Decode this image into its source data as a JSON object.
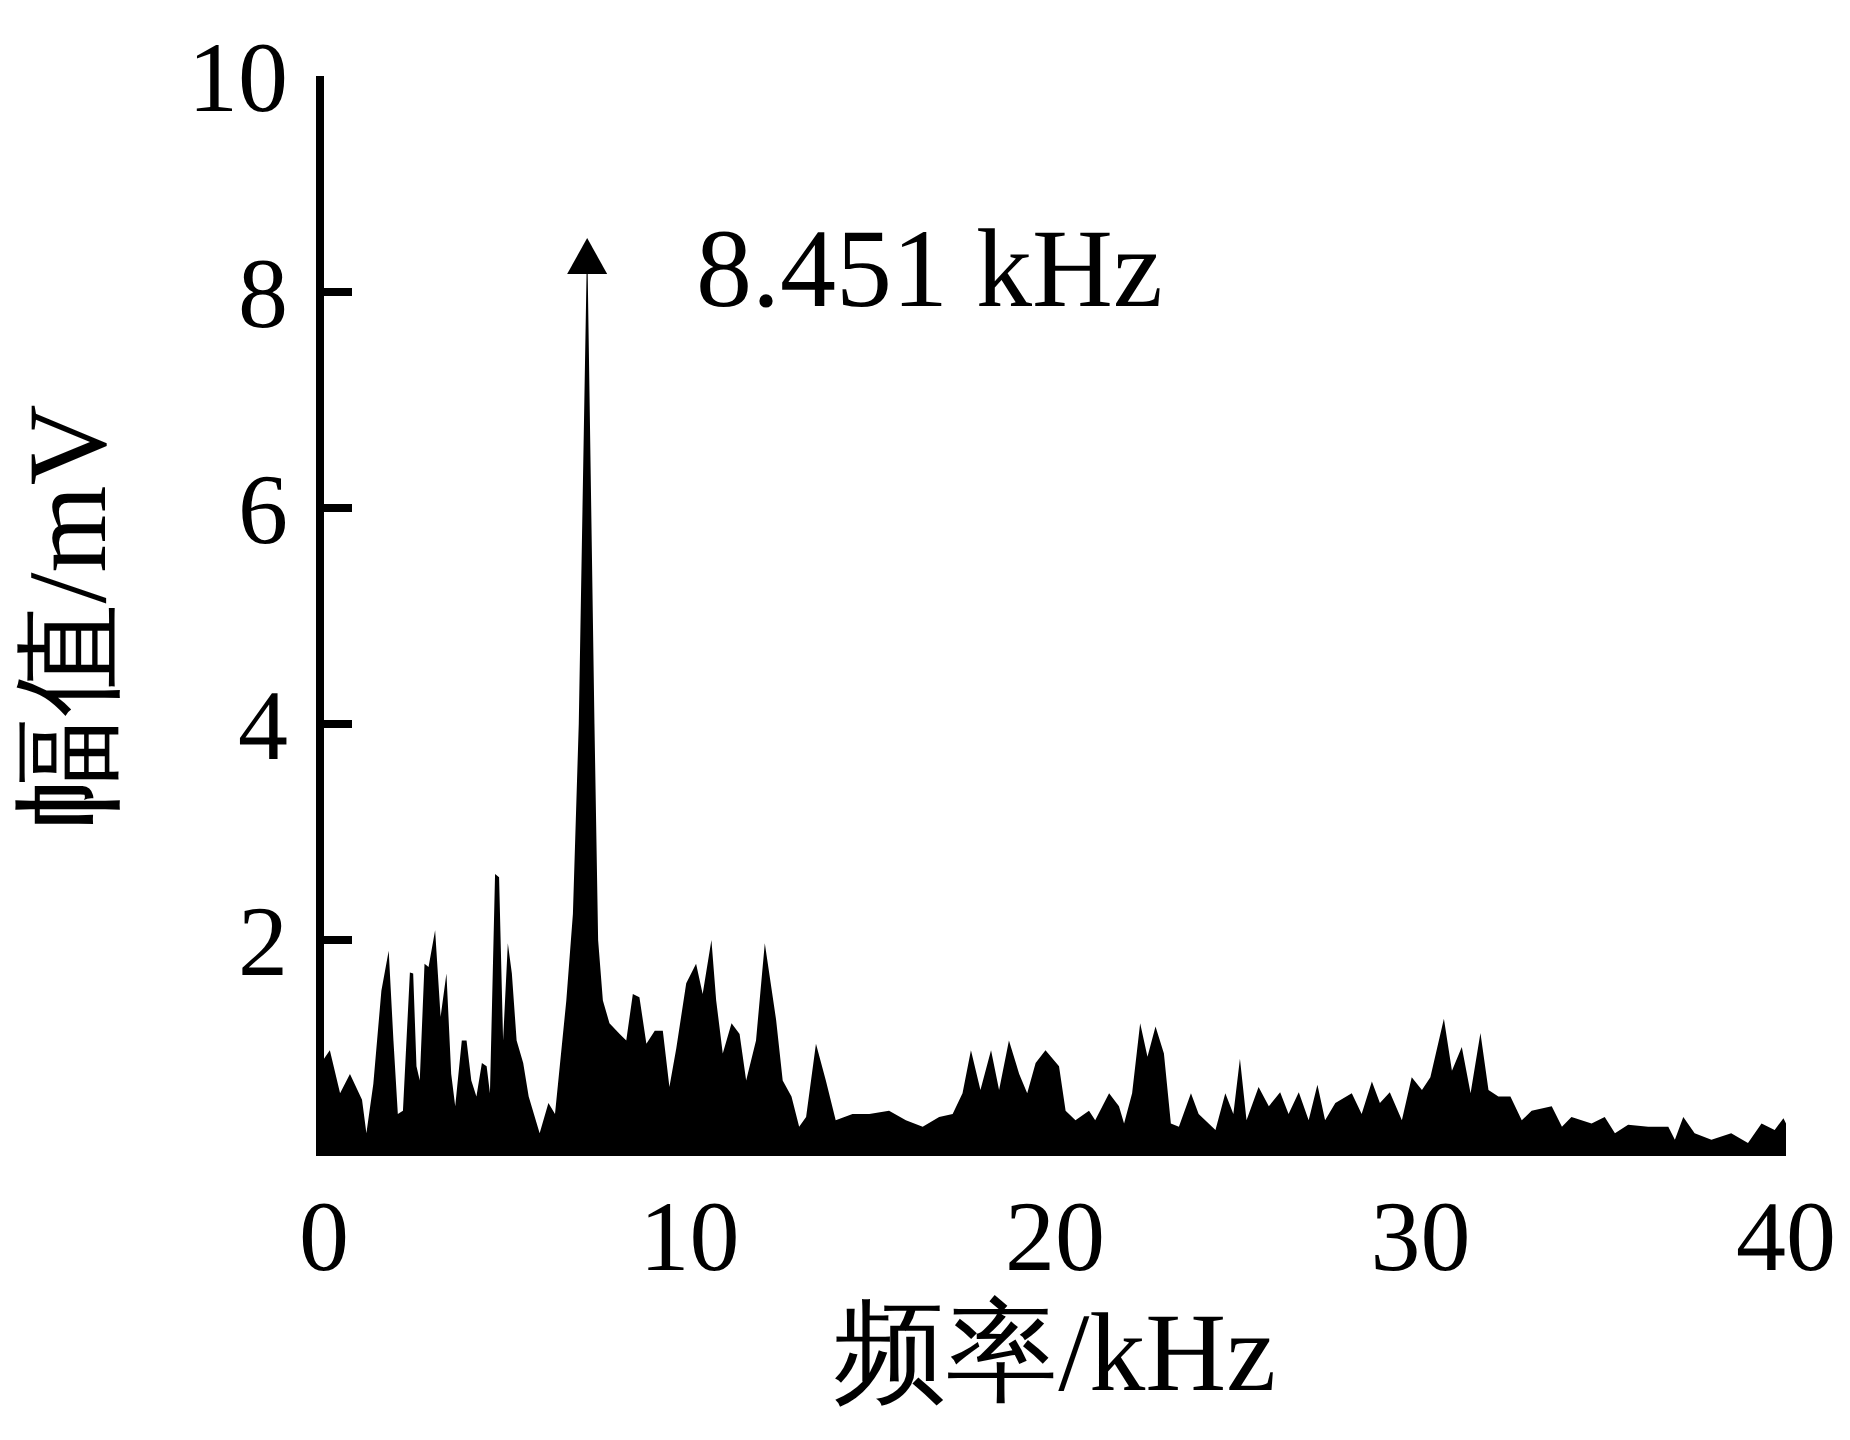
{
  "chart_data": {
    "type": "area",
    "xlabel": "频率/kHz",
    "ylabel": "幅值/mV",
    "color": "#000000",
    "x": [
      0,
      0.16,
      0.44,
      0.71,
      1.04,
      1.16,
      1.35,
      1.57,
      1.77,
      1.9,
      2.02,
      2.16,
      2.35,
      2.44,
      2.53,
      2.62,
      2.75,
      2.86,
      3.04,
      3.19,
      3.35,
      3.48,
      3.59,
      3.77,
      3.9,
      4.03,
      4.17,
      4.32,
      4.45,
      4.54,
      4.68,
      4.79,
      4.9,
      5.03,
      5.14,
      5.27,
      5.45,
      5.6,
      5.9,
      6.14,
      6.32,
      6.63,
      6.81,
      6.97,
      7.2,
      7.4,
      7.5,
      7.63,
      7.81,
      8.09,
      8.27,
      8.45,
      8.63,
      8.82,
      9.05,
      9.27,
      9.45,
      9.64,
      9.91,
      10.18,
      10.36,
      10.6,
      10.73,
      10.91,
      11.15,
      11.37,
      11.55,
      11.82,
      12.06,
      12.37,
      12.55,
      12.79,
      13.0,
      13.19,
      13.46,
      13.73,
      14.0,
      14.46,
      14.92,
      15.46,
      15.92,
      16.38,
      16.83,
      17.2,
      17.47,
      17.7,
      17.96,
      18.25,
      18.47,
      18.74,
      19.02,
      19.24,
      19.47,
      19.74,
      20.11,
      20.29,
      20.56,
      20.93,
      21.1,
      21.48,
      21.75,
      21.89,
      22.11,
      22.33,
      22.53,
      22.75,
      22.98,
      23.17,
      23.39,
      23.72,
      23.93,
      24.39,
      24.66,
      24.88,
      25.06,
      25.24,
      25.57,
      25.85,
      26.16,
      26.39,
      26.67,
      26.94,
      27.18,
      27.39,
      27.67,
      28.12,
      28.39,
      28.67,
      28.89,
      29.16,
      29.49,
      29.76,
      30.04,
      30.27,
      30.64,
      30.86,
      31.13,
      31.37,
      31.64,
      31.86,
      32.13,
      32.46,
      32.77,
      33.04,
      33.59,
      33.87,
      34.13,
      34.68,
      35.04,
      35.32,
      35.68,
      36.23,
      36.78,
      36.96,
      37.19,
      37.5,
      37.96,
      38.5,
      38.96,
      39.33,
      39.69,
      39.93,
      40
    ],
    "values": [
      0.9,
      0.98,
      0.58,
      0.76,
      0.52,
      0.21,
      0.67,
      1.53,
      1.9,
      1.07,
      0.39,
      0.42,
      1.7,
      1.69,
      0.83,
      0.7,
      1.78,
      1.75,
      2.09,
      1.29,
      1.69,
      0.76,
      0.46,
      1.07,
      1.07,
      0.7,
      0.55,
      0.86,
      0.83,
      0.58,
      2.61,
      2.58,
      1.07,
      1.97,
      1.69,
      1.07,
      0.86,
      0.55,
      0.21,
      0.49,
      0.39,
      1.44,
      2.24,
      4.0,
      8.5,
      4.0,
      2.0,
      1.44,
      1.23,
      1.13,
      1.07,
      1.5,
      1.47,
      1.04,
      1.16,
      1.16,
      0.64,
      1.0,
      1.6,
      1.78,
      1.5,
      2.0,
      1.44,
      0.95,
      1.23,
      1.13,
      0.7,
      1.07,
      1.97,
      1.26,
      0.7,
      0.55,
      0.27,
      0.36,
      1.04,
      0.7,
      0.33,
      0.39,
      0.39,
      0.42,
      0.33,
      0.27,
      0.36,
      0.39,
      0.58,
      0.98,
      0.61,
      0.98,
      0.61,
      1.07,
      0.76,
      0.58,
      0.86,
      0.98,
      0.83,
      0.42,
      0.33,
      0.42,
      0.33,
      0.58,
      0.46,
      0.3,
      0.58,
      1.23,
      0.92,
      1.2,
      0.95,
      0.3,
      0.27,
      0.58,
      0.39,
      0.24,
      0.58,
      0.39,
      0.9,
      0.33,
      0.64,
      0.46,
      0.59,
      0.39,
      0.59,
      0.33,
      0.66,
      0.33,
      0.49,
      0.58,
      0.39,
      0.69,
      0.49,
      0.59,
      0.33,
      0.73,
      0.61,
      0.73,
      1.27,
      0.79,
      1.01,
      0.58,
      1.14,
      0.61,
      0.55,
      0.55,
      0.33,
      0.42,
      0.46,
      0.27,
      0.36,
      0.3,
      0.36,
      0.21,
      0.29,
      0.27,
      0.27,
      0.15,
      0.36,
      0.21,
      0.15,
      0.21,
      0.12,
      0.3,
      0.24,
      0.35,
      0.3
    ],
    "xlim": [
      0,
      40
    ],
    "ylim": [
      0,
      10
    ],
    "xticks": [
      0,
      10,
      20,
      30,
      40
    ],
    "yticks": [
      2,
      4,
      6,
      8,
      10
    ],
    "annotations": [
      {
        "text": "8.451 kHz",
        "x": 7.2,
        "y": 8.5
      }
    ]
  }
}
